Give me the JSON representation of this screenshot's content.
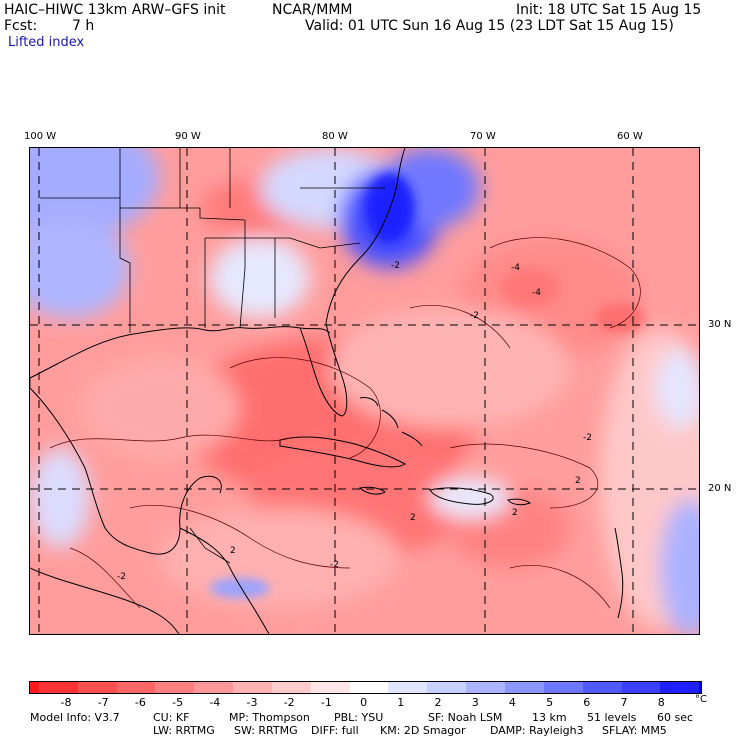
{
  "header": {
    "model": "HAIC–HIWC 13km ARW–GFS init",
    "agency": "NCAR/MMM",
    "init": "Init: 18 UTC Sat 15 Aug 15",
    "fcst_label": "Fcst:",
    "fcst_value": "7 h",
    "valid": "Valid: 01 UTC Sun 16 Aug 15 (23 LDT Sat 15 Aug 15)",
    "field": "Lifted index"
  },
  "map": {
    "longitude_labels": [
      "100 W",
      "90 W",
      "80 W",
      "70 W",
      "60 W"
    ],
    "latitude_labels": [
      "30 N",
      "20 N"
    ],
    "contour_labels": [
      "-2",
      "-4",
      "-4",
      "-2",
      "-2",
      "2",
      "2",
      "2",
      "-2",
      "-2",
      "2"
    ],
    "colors": {
      "land_outline": "#000000",
      "grid": "#000000"
    }
  },
  "colorbar": {
    "tick_labels": [
      "-8",
      "-7",
      "-6",
      "-5",
      "-4",
      "-3",
      "-2",
      "-1",
      "0",
      "1",
      "2",
      "3",
      "4",
      "5",
      "6",
      "7",
      "8"
    ],
    "unit": "°C",
    "colors": [
      "#ff1a1a",
      "#ff3333",
      "#ff5050",
      "#ff6666",
      "#ff8080",
      "#ff9999",
      "#ffb3b3",
      "#ffcccc",
      "#ffe6e6",
      "#ffffff",
      "#e0e6ff",
      "#c8d0ff",
      "#aab4ff",
      "#8c96ff",
      "#6e78ff",
      "#505aff",
      "#3a40ff",
      "#2020ff",
      "#0000ee"
    ]
  },
  "model_info": {
    "line1": [
      "Model Info: V3.7",
      "CU: KF",
      "MP: Thompson",
      "PBL: YSU",
      "SF: Noah LSM",
      "13 km",
      "51 levels",
      "60 sec"
    ],
    "line2": [
      "LW: RRTMG",
      "SW: RRTMG",
      "DIFF: full",
      "KM: 2D Smagor",
      "DAMP: Rayleigh3",
      "SFLAY: MM5"
    ]
  }
}
